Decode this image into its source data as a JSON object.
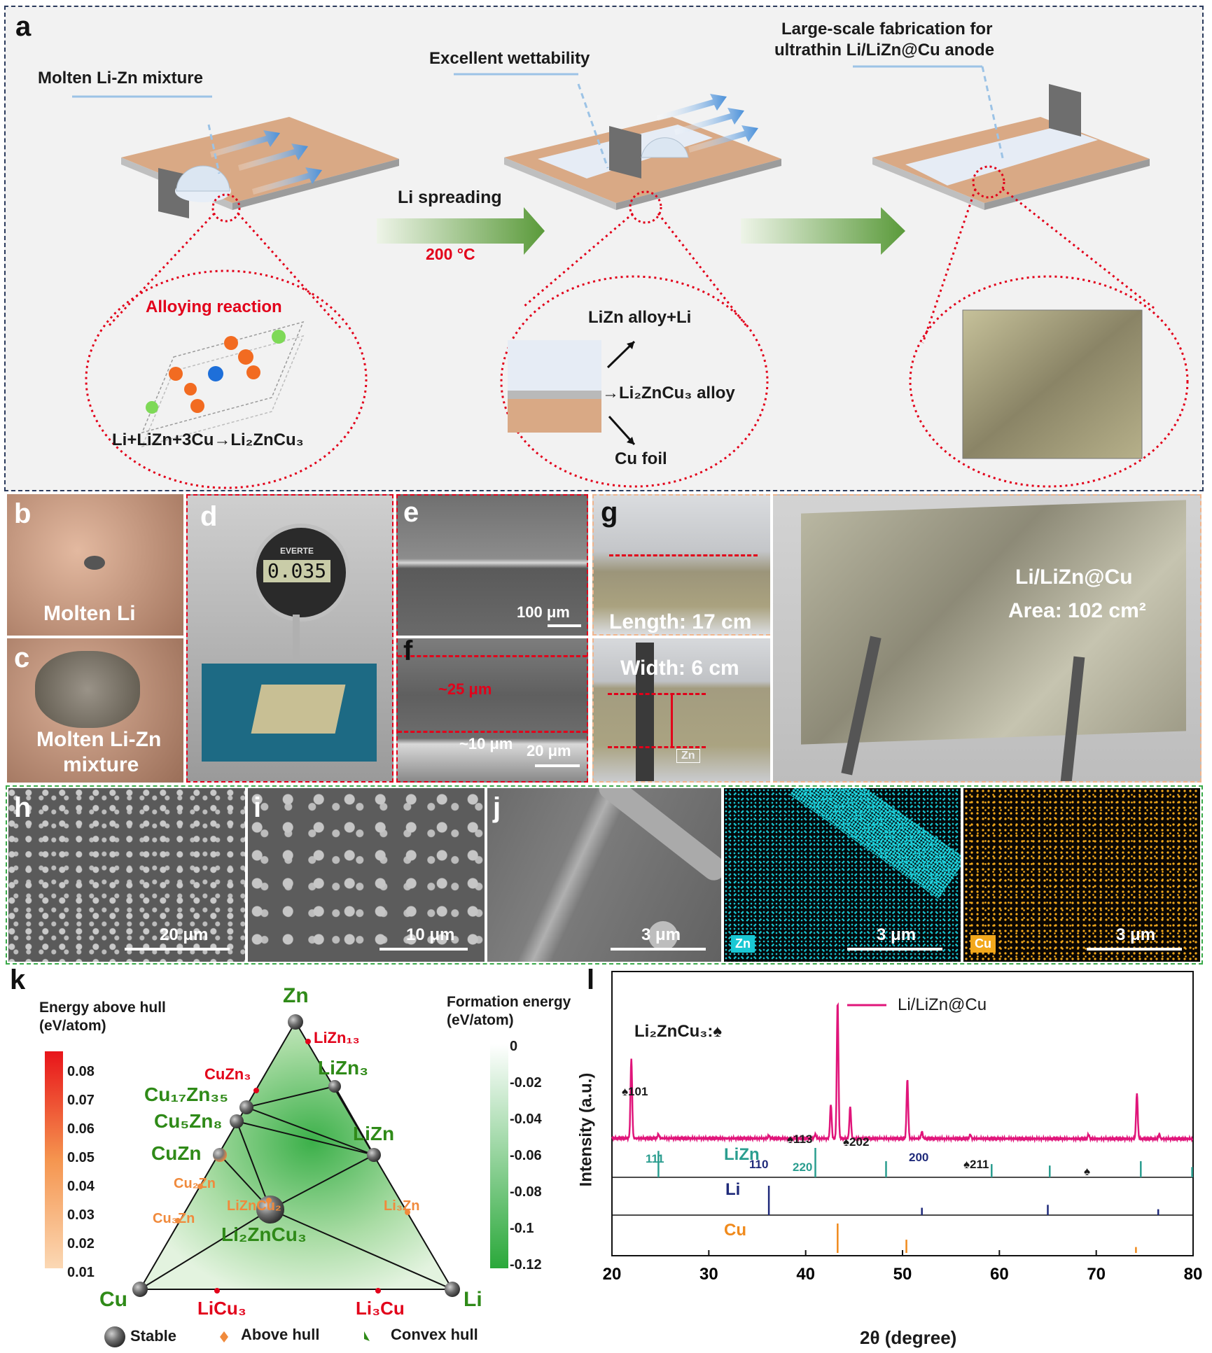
{
  "panel_a": {
    "letter": "a",
    "molten_label": "Molten Li-Zn mixture",
    "wettability_label": "Excellent wettability",
    "largescale_label_line1": "Large-scale fabrication for",
    "largescale_label_line2": "ultrathin Li/LiZn@Cu anode",
    "spreading_label": "Li spreading",
    "temperature_label": "200 °C",
    "alloying_label": "Alloying reaction",
    "reaction_equation": "Li+LiZn+3Cu→Li₂ZnCu₃",
    "layer_top_label": "LiZn alloy+Li",
    "layer_mid_label": "→Li₂ZnCu₃ alloy",
    "layer_bottom_label": "Cu foil"
  },
  "panel_b": {
    "letter": "b",
    "label": "Molten Li"
  },
  "panel_c": {
    "letter": "c",
    "label_line1": "Molten Li-Zn",
    "label_line2": "mixture"
  },
  "panel_d": {
    "letter": "d",
    "gauge_reading": "0.035",
    "brand": "EVERTE"
  },
  "panel_e": {
    "letter": "e",
    "scale": "100 μm"
  },
  "panel_f": {
    "letter": "f",
    "thickness_top": "~25 μm",
    "thickness_bottom": "~10 μm",
    "scale": "20 μm"
  },
  "panel_g": {
    "letter": "g",
    "length_label": "Length: 17 cm",
    "width_label": "Width: 6 cm",
    "zn_tag": "Zn",
    "product_label": "Li/LiZn@Cu",
    "area_label": "Area: 102 cm²"
  },
  "panel_h": {
    "letter": "h",
    "scale": "20 μm"
  },
  "panel_i": {
    "letter": "i",
    "scale": "10 μm"
  },
  "panel_j": {
    "letter": "j",
    "scale": "3 μm"
  },
  "panel_zn_map": {
    "tag": "Zn",
    "scale": "3 μm",
    "color": "#19c8d4"
  },
  "panel_cu_map": {
    "tag": "Cu",
    "scale": "3 μm",
    "color": "#f2a81c"
  },
  "panel_k": {
    "letter": "k",
    "left_colorbar_title_line1": "Energy above hull",
    "left_colorbar_title_line2": "(eV/atom)",
    "left_colorbar_ticks": [
      "0.08",
      "0.07",
      "0.06",
      "0.05",
      "0.04",
      "0.03",
      "0.02",
      "0.01"
    ],
    "right_colorbar_title_line1": "Formation energy",
    "right_colorbar_title_line2": "(eV/atom)",
    "right_colorbar_ticks": [
      "0",
      "-0.02",
      "-0.04",
      "-0.06",
      "-0.08",
      "-0.1",
      "-0.12"
    ],
    "vertex_zn": "Zn",
    "vertex_cu": "Cu",
    "vertex_li": "Li",
    "phases_stable": [
      "Cu₁₇Zn₃₅",
      "Cu₅Zn₈",
      "CuZn",
      "LiZn₃",
      "LiZn",
      "Li₂ZnCu₃"
    ],
    "phases_above_hull_red": [
      "LiZn₁₃",
      "CuZn₃",
      "LiCu₃",
      "Li₃Cu"
    ],
    "phases_above_hull_orange": [
      "Cu₂Zn",
      "Cu₃Zn",
      "LiZnCu₂",
      "Li₃Zn"
    ],
    "legend_stable": "Stable",
    "legend_above": "Above hull",
    "legend_hull": "Convex hull"
  },
  "panel_l": {
    "letter": "l",
    "legend": "Li/LiZn@Cu",
    "phase_note": "Li₂ZnCu₃:♠",
    "ylabel": "Intensity (a.u.)",
    "xlabel": "2θ (degree)",
    "ref_lizn": "LiZn",
    "ref_li": "Li",
    "ref_cu": "Cu",
    "peak_labels": [
      "♠101",
      "111",
      "110",
      "220",
      "♠113",
      "♠202",
      "200",
      "♠211",
      "♠"
    ]
  },
  "chart_data": {
    "type": "line",
    "xlabel": "2θ (degree)",
    "ylabel": "Intensity (a.u.)",
    "xlim": [
      20,
      80
    ],
    "x_ticks": [
      20,
      30,
      40,
      50,
      60,
      70,
      80
    ],
    "series": [
      {
        "name": "Li/LiZn@Cu",
        "color": "#e0157a",
        "peaks": [
          {
            "x": 22.0,
            "height": 0.58
          },
          {
            "x": 24.8,
            "height": 0.03
          },
          {
            "x": 36.2,
            "height": 0.02
          },
          {
            "x": 41.0,
            "height": 0.03
          },
          {
            "x": 42.6,
            "height": 0.25
          },
          {
            "x": 43.3,
            "height": 1.0
          },
          {
            "x": 44.6,
            "height": 0.23
          },
          {
            "x": 50.5,
            "height": 0.43
          },
          {
            "x": 52.0,
            "height": 0.05
          },
          {
            "x": 57.0,
            "height": 0.03
          },
          {
            "x": 69.2,
            "height": 0.03
          },
          {
            "x": 74.2,
            "height": 0.33
          },
          {
            "x": 76.5,
            "height": 0.03
          }
        ]
      }
    ],
    "references": [
      {
        "name": "LiZn",
        "color": "#2a9d8f",
        "positions": [
          24.8,
          41.0,
          48.3,
          59.2,
          65.2,
          74.6,
          79.9
        ],
        "heights": [
          0.9,
          1.0,
          0.55,
          0.45,
          0.4,
          0.55,
          0.35
        ]
      },
      {
        "name": "Li",
        "color": "#1f2a7a",
        "positions": [
          36.2,
          52.0,
          65.0,
          76.4
        ],
        "heights": [
          1.0,
          0.25,
          0.35,
          0.2
        ]
      },
      {
        "name": "Cu",
        "color": "#f08a1c",
        "positions": [
          43.3,
          50.4,
          74.1
        ],
        "heights": [
          1.0,
          0.45,
          0.2
        ]
      }
    ]
  }
}
